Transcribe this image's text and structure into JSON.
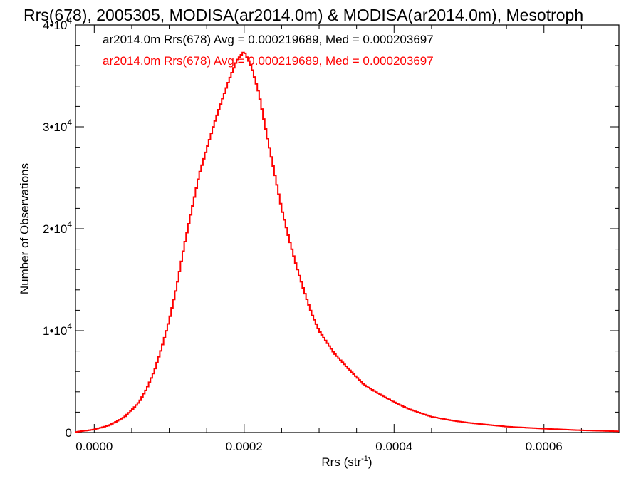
{
  "chart_data": {
    "type": "histogram",
    "title": "Rrs(678), 2005305, MODISA(ar2014.0m) & MODISA(ar2014.0m), Mesotroph",
    "xlabel": "Rrs (str",
    "xlabel_sup": "-1",
    "xlabel_close": ")",
    "ylabel": "Number of Observations",
    "xlim": [
      -2.5e-05,
      0.0007
    ],
    "ylim": [
      0,
      40000
    ],
    "x_ticks": [
      {
        "value": 0.0,
        "label": "0.0000"
      },
      {
        "value": 0.0002,
        "label": "0.0002"
      },
      {
        "value": 0.0004,
        "label": "0.0004"
      },
      {
        "value": 0.0006,
        "label": "0.0006"
      }
    ],
    "y_ticks": [
      {
        "value": 0,
        "base": "0",
        "exp": ""
      },
      {
        "value": 10000,
        "base": "1•10",
        "exp": "4"
      },
      {
        "value": 20000,
        "base": "2•10",
        "exp": "4"
      },
      {
        "value": 30000,
        "base": "3•10",
        "exp": "4"
      },
      {
        "value": 40000,
        "base": "4•10",
        "exp": "4"
      }
    ],
    "legend": {
      "placement": "top-left",
      "entries": [
        {
          "text": "ar2014.0m Rrs(678) Avg = 0.000219689, Med = 0.000203697",
          "color": "#000000"
        },
        {
          "text": "ar2014.0m Rrs(678) Avg = 0.000219689, Med = 0.000203697",
          "color": "#ff0000"
        }
      ]
    },
    "series": [
      {
        "color": "#ff0000",
        "points": [
          [
            -2.5e-05,
            50
          ],
          [
            0.0,
            300
          ],
          [
            2e-05,
            700
          ],
          [
            4e-05,
            1500
          ],
          [
            5e-05,
            2200
          ],
          [
            6e-05,
            3000
          ],
          [
            7e-05,
            4300
          ],
          [
            8e-05,
            6000
          ],
          [
            9e-05,
            8300
          ],
          [
            0.0001,
            11000
          ],
          [
            0.00011,
            14300
          ],
          [
            0.00012,
            18300
          ],
          [
            0.00013,
            21800
          ],
          [
            0.00014,
            25300
          ],
          [
            0.00015,
            27800
          ],
          [
            0.00016,
            30300
          ],
          [
            0.00017,
            32500
          ],
          [
            0.00018,
            34600
          ],
          [
            0.00019,
            36500
          ],
          [
            0.0002,
            37400
          ],
          [
            0.00021,
            35900
          ],
          [
            0.00022,
            33200
          ],
          [
            0.00023,
            29300
          ],
          [
            0.00024,
            25700
          ],
          [
            0.00025,
            22000
          ],
          [
            0.00026,
            19000
          ],
          [
            0.00027,
            16300
          ],
          [
            0.00028,
            13900
          ],
          [
            0.00029,
            11700
          ],
          [
            0.0003,
            10000
          ],
          [
            0.00032,
            7800
          ],
          [
            0.00034,
            6200
          ],
          [
            0.00036,
            4700
          ],
          [
            0.00038,
            3800
          ],
          [
            0.0004,
            3000
          ],
          [
            0.00042,
            2300
          ],
          [
            0.00045,
            1550
          ],
          [
            0.00048,
            1150
          ],
          [
            0.0005,
            950
          ],
          [
            0.00055,
            580
          ],
          [
            0.0006,
            380
          ],
          [
            0.00065,
            220
          ],
          [
            0.0007,
            120
          ]
        ]
      }
    ]
  }
}
